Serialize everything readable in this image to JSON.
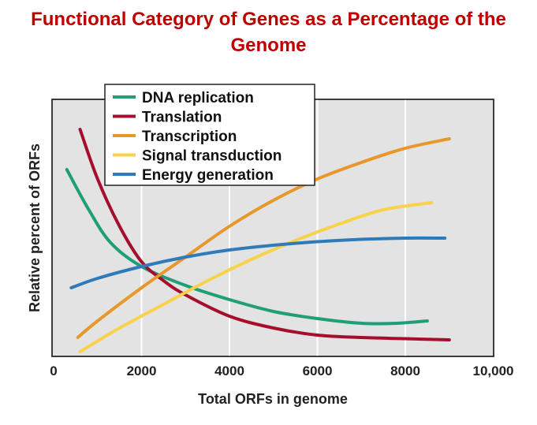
{
  "chart_data": {
    "type": "line",
    "title": "Functional Category of Genes as a Percentage of the Genome",
    "xlabel": "Total ORFs in genome",
    "ylabel": "Relative percent of ORFs",
    "xlim": [
      0,
      10000
    ],
    "ylim": [
      0,
      100
    ],
    "x_ticks": [
      "0",
      "2000",
      "4000",
      "6000",
      "8000",
      "10,000"
    ],
    "grid": "vertical",
    "legend_position": "top-left",
    "series": [
      {
        "name": "DNA replication",
        "color": "#1f9e78",
        "x": [
          300,
          800,
          1300,
          2000,
          3000,
          4000,
          5000,
          6000,
          7000,
          7800,
          8500
        ],
        "y": [
          79,
          62,
          48,
          38,
          30,
          24,
          19,
          16,
          14,
          14,
          15
        ]
      },
      {
        "name": "Translation",
        "color": "#a50f2d",
        "x": [
          600,
          1000,
          1500,
          2000,
          2500,
          3000,
          4000,
          5000,
          6000,
          7000,
          8000,
          9000
        ],
        "y": [
          96,
          75,
          55,
          40,
          32,
          26,
          17,
          12,
          9,
          8,
          7.5,
          7
        ]
      },
      {
        "name": "Transcription",
        "color": "#e8982a",
        "x": [
          550,
          1000,
          2000,
          3000,
          4000,
          5000,
          6000,
          7000,
          8000,
          9000
        ],
        "y": [
          8,
          15,
          29,
          42,
          55,
          66,
          75,
          82,
          88,
          92
        ]
      },
      {
        "name": "Signal transduction",
        "color": "#f7d24a",
        "x": [
          600,
          1500,
          2500,
          3500,
          4500,
          5500,
          6500,
          7500,
          8600
        ],
        "y": [
          2,
          12,
          22,
          32,
          41,
          49,
          56,
          62,
          65
        ]
      },
      {
        "name": "Energy generation",
        "color": "#2f7ab9",
        "x": [
          400,
          1000,
          2000,
          3000,
          4000,
          5000,
          6000,
          7000,
          8000,
          8900
        ],
        "y": [
          29,
          33,
          38,
          42,
          45,
          47,
          48.5,
          49.5,
          50,
          50
        ]
      }
    ]
  }
}
